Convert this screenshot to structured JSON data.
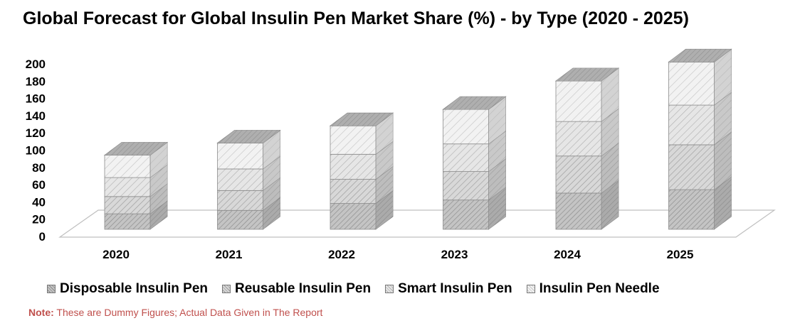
{
  "chart_data": {
    "type": "bar",
    "title": "Global Forecast for Global Insulin Pen Market Share (%) - by Type (2020 - 2025)",
    "stacked": true,
    "three_d": true,
    "categories": [
      "2020",
      "2021",
      "2022",
      "2023",
      "2024",
      "2025"
    ],
    "ylim": [
      0,
      200
    ],
    "y_ticks": [
      "0",
      "20",
      "40",
      "60",
      "80",
      "100",
      "120",
      "140",
      "160",
      "180",
      "200"
    ],
    "grid": false,
    "legend_position": "bottom",
    "series": [
      {
        "name": "Disposable Insulin Pen",
        "values": [
          18,
          22,
          30,
          34,
          42,
          46
        ],
        "color": "#c4c4c4"
      },
      {
        "name": "Reusable Insulin Pen",
        "values": [
          20,
          23,
          28,
          33,
          43,
          52
        ],
        "color": "#d8d8d8"
      },
      {
        "name": "Smart Insulin Pen",
        "values": [
          22,
          25,
          29,
          32,
          40,
          46
        ],
        "color": "#e6e6e6"
      },
      {
        "name": "Insulin Pen Needle",
        "values": [
          26,
          30,
          33,
          40,
          47,
          50
        ],
        "color": "#f2f2f2"
      }
    ]
  },
  "note": {
    "label": "Note:",
    "text": " These are Dummy Figures; Actual Data Given in The Report"
  }
}
